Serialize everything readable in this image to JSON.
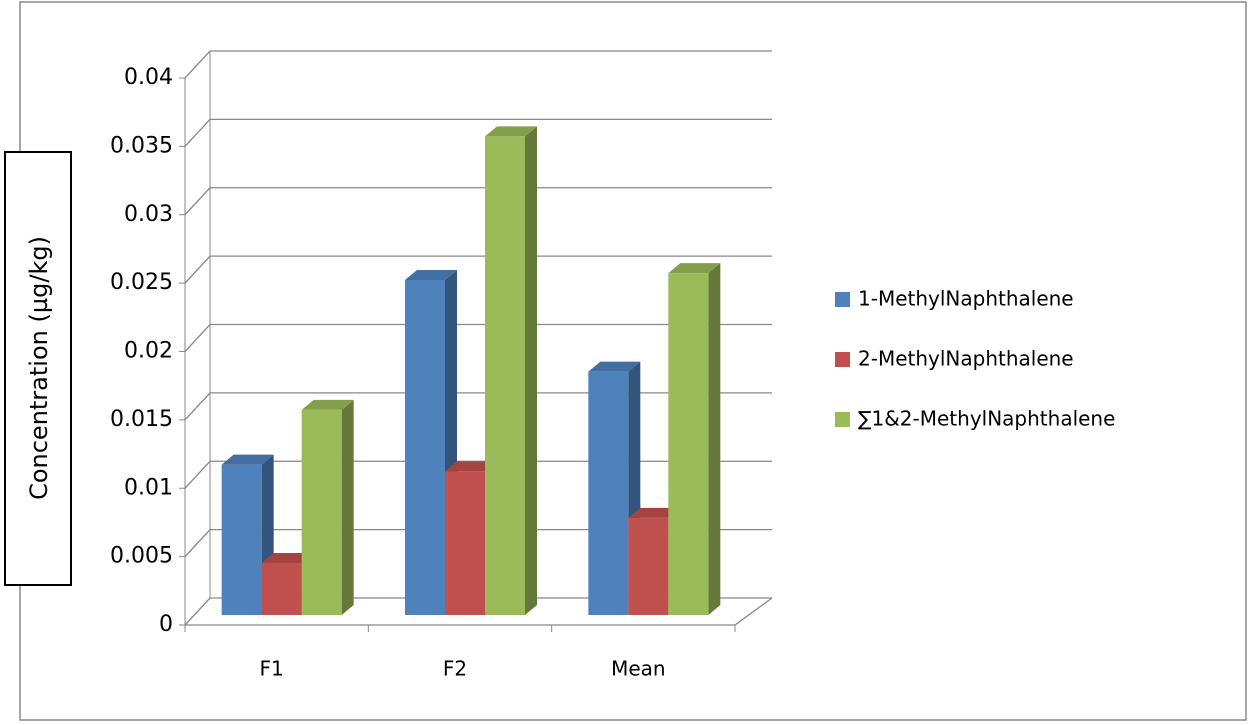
{
  "chart_data": {
    "type": "bar3d",
    "y_label": "Concentration (µg/kg)",
    "categories": [
      "F1",
      "F2",
      "Mean"
    ],
    "series": [
      {
        "name": "1-MethylNaphthalene",
        "color": "#4f81bd",
        "values": [
          0.011,
          0.0245,
          0.0178
        ]
      },
      {
        "name": "2-MethylNaphthalene",
        "color": "#c0504d",
        "values": [
          0.0038,
          0.0105,
          0.0071
        ]
      },
      {
        "name": "∑1&2-MethylNaphthalene",
        "color": "#9bbb59",
        "values": [
          0.015,
          0.035,
          0.025
        ]
      }
    ],
    "ylim": [
      0,
      0.04
    ],
    "yticks": [
      0,
      0.005,
      0.01,
      0.015,
      0.02,
      0.025,
      0.03,
      0.035,
      0.04
    ],
    "grid": true,
    "legend": "right"
  }
}
